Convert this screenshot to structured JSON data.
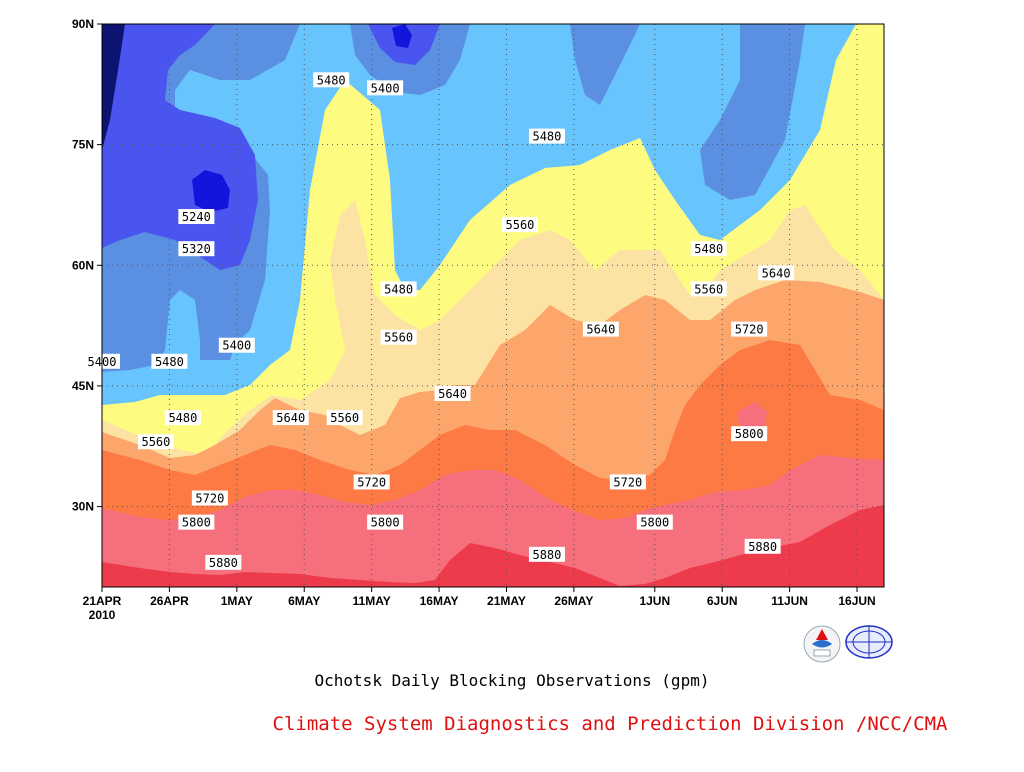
{
  "chart_data": {
    "type": "heatmap",
    "title": "Ochotsk Daily Blocking Observations (gpm)",
    "credit": "Climate System Diagnostics and Prediction Division /NCC/CMA",
    "x_tick_labels": [
      "21APR",
      "26APR",
      "1MAY",
      "6MAY",
      "11MAY",
      "16MAY",
      "21MAY",
      "26MAY",
      "1JUN",
      "6JUN",
      "11JUN",
      "16JUN"
    ],
    "x_year_label": "2010",
    "x_range": [
      "2010-04-21",
      "2010-06-18"
    ],
    "y_tick_labels": [
      "30N",
      "45N",
      "60N",
      "75N",
      "90N"
    ],
    "y_ticks": [
      30,
      45,
      60,
      75,
      90
    ],
    "y_range": [
      20,
      90
    ],
    "grid": true,
    "contour_levels": [
      5240,
      5320,
      5400,
      5480,
      5560,
      5640,
      5720,
      5800,
      5880
    ],
    "colors": {
      "below_5240": "#0c1370",
      "5240_5320": "#1414dd",
      "5320_5400": "#4a54ee",
      "5400_5480": "#5b8fe2",
      "5480_5560": "#68c4fd",
      "5560_5640": "#fefc80",
      "5640_5720": "#fde3a3",
      "5720_5800": "#fca66c",
      "5800_5880": "#fd7a44",
      "5880_5960": "#f66f7c",
      "above_5960": "#ee3b4b"
    },
    "contour_labels": [
      {
        "text": "5480",
        "date": "2010-05-08",
        "lat": 83
      },
      {
        "text": "5400",
        "date": "2010-05-12",
        "lat": 82
      },
      {
        "text": "5240",
        "date": "2010-04-28",
        "lat": 66
      },
      {
        "text": "5320",
        "date": "2010-04-28",
        "lat": 62
      },
      {
        "text": "5400",
        "date": "2010-04-21",
        "lat": 48
      },
      {
        "text": "5480",
        "date": "2010-04-26",
        "lat": 48
      },
      {
        "text": "5400",
        "date": "2010-05-01",
        "lat": 50
      },
      {
        "text": "5480",
        "date": "2010-04-27",
        "lat": 41
      },
      {
        "text": "5560",
        "date": "2010-04-25",
        "lat": 38
      },
      {
        "text": "5640",
        "date": "2010-05-05",
        "lat": 41
      },
      {
        "text": "5560",
        "date": "2010-05-09",
        "lat": 41
      },
      {
        "text": "5720",
        "date": "2010-04-29",
        "lat": 31
      },
      {
        "text": "5800",
        "date": "2010-04-28",
        "lat": 28
      },
      {
        "text": "5880",
        "date": "2010-04-30",
        "lat": 23
      },
      {
        "text": "5480",
        "date": "2010-05-13",
        "lat": 57
      },
      {
        "text": "5560",
        "date": "2010-05-13",
        "lat": 51
      },
      {
        "text": "5720",
        "date": "2010-05-11",
        "lat": 33
      },
      {
        "text": "5800",
        "date": "2010-05-12",
        "lat": 28
      },
      {
        "text": "5640",
        "date": "2010-05-17",
        "lat": 44
      },
      {
        "text": "5560",
        "date": "2010-05-22",
        "lat": 65
      },
      {
        "text": "5480",
        "date": "2010-05-24",
        "lat": 76
      },
      {
        "text": "5640",
        "date": "2010-05-28",
        "lat": 52
      },
      {
        "text": "5720",
        "date": "2010-05-30",
        "lat": 33
      },
      {
        "text": "5880",
        "date": "2010-05-24",
        "lat": 24
      },
      {
        "text": "5800",
        "date": "2010-06-01",
        "lat": 28
      },
      {
        "text": "5480",
        "date": "2010-06-05",
        "lat": 62
      },
      {
        "text": "5560",
        "date": "2010-06-05",
        "lat": 57
      },
      {
        "text": "5640",
        "date": "2010-06-10",
        "lat": 59
      },
      {
        "text": "5720",
        "date": "2010-06-08",
        "lat": 52
      },
      {
        "text": "5800",
        "date": "2010-06-08",
        "lat": 39
      },
      {
        "text": "5880",
        "date": "2010-06-09",
        "lat": 25
      }
    ]
  }
}
